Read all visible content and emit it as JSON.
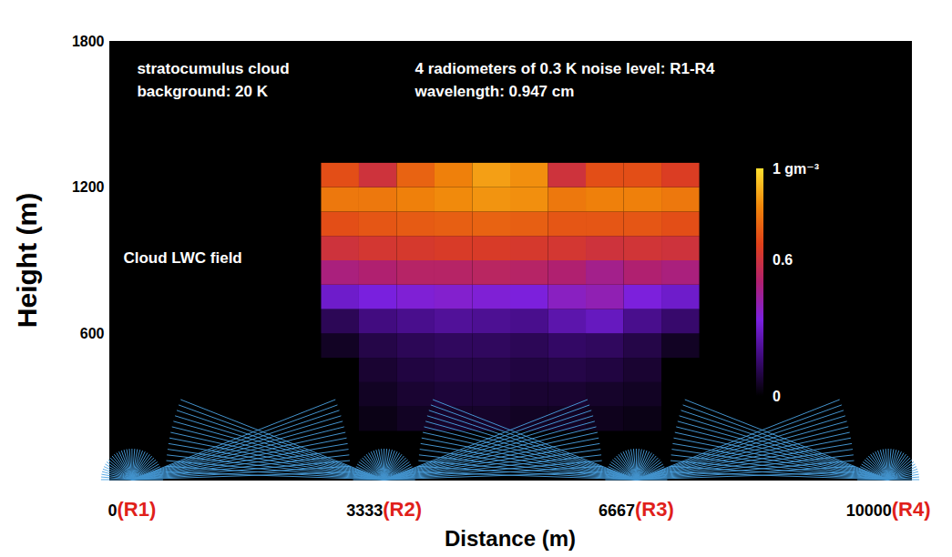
{
  "chart_data": {
    "type": "heatmap",
    "x_label": "Distance (m)",
    "y_label": "Height (m)",
    "xlim": [
      -300,
      10300
    ],
    "ylim": [
      0,
      1800
    ],
    "xticks": [
      0,
      3333,
      6667,
      10000
    ],
    "yticks": [
      600,
      1200,
      1800
    ],
    "grid": false,
    "cells": {
      "x_edges": [
        2500,
        3000,
        3500,
        4000,
        4500,
        5000,
        5500,
        6000,
        6500,
        7000,
        7500
      ],
      "y_edges": [
        200,
        300,
        400,
        500,
        600,
        700,
        800,
        900,
        1000,
        1100,
        1200,
        1300
      ],
      "values": [
        [
          0,
          0.03,
          0.05,
          0.06,
          0.06,
          0.05,
          0.05,
          0.04,
          0.03,
          0
        ],
        [
          0,
          0.05,
          0.07,
          0.08,
          0.08,
          0.07,
          0.07,
          0.06,
          0.05,
          0
        ],
        [
          0,
          0.07,
          0.09,
          0.1,
          0.1,
          0.09,
          0.1,
          0.09,
          0.07,
          0
        ],
        [
          0.05,
          0.1,
          0.12,
          0.13,
          0.13,
          0.12,
          0.14,
          0.13,
          0.1,
          0.05
        ],
        [
          0.12,
          0.18,
          0.2,
          0.22,
          0.21,
          0.2,
          0.25,
          0.28,
          0.2,
          0.15
        ],
        [
          0.3,
          0.33,
          0.35,
          0.36,
          0.35,
          0.34,
          0.38,
          0.4,
          0.34,
          0.3
        ],
        [
          0.48,
          0.5,
          0.52,
          0.52,
          0.53,
          0.52,
          0.5,
          0.46,
          0.5,
          0.48
        ],
        [
          0.6,
          0.62,
          0.63,
          0.64,
          0.64,
          0.63,
          0.62,
          0.6,
          0.61,
          0.6
        ],
        [
          0.7,
          0.72,
          0.73,
          0.74,
          0.75,
          0.74,
          0.72,
          0.72,
          0.72,
          0.7
        ],
        [
          0.8,
          0.8,
          0.82,
          0.84,
          0.86,
          0.85,
          0.8,
          0.82,
          0.82,
          0.8
        ],
        [
          0.7,
          0.6,
          0.75,
          0.82,
          0.88,
          0.85,
          0.6,
          0.7,
          0.7,
          0.65
        ]
      ]
    },
    "colorbar": {
      "range": [
        0,
        1
      ],
      "ticks": [
        0,
        0.6,
        {
          "value": 1,
          "label": "1 gm⁻³"
        }
      ],
      "colors": [
        "#000000",
        "#3d0a78",
        "#7a20e0",
        "#b02070",
        "#e0401a",
        "#f0860a",
        "#ffe030"
      ]
    },
    "annotations": [
      {
        "text": "stratocumulus cloud",
        "x": 60,
        "y": 1688
      },
      {
        "text": "background: 20 K",
        "x": 60,
        "y": 1595
      },
      {
        "text": "4 radiometers of 0.3 K noise level: R1-R4",
        "x": 3736,
        "y": 1688
      },
      {
        "text": "wavelength: 0.947 cm",
        "x": 3736,
        "y": 1595
      },
      {
        "text": "Cloud LWC field",
        "x": -120,
        "y": 912
      }
    ],
    "radiometers": [
      {
        "label": "(R1)",
        "x": 0
      },
      {
        "label": "(R2)",
        "x": 3333
      },
      {
        "label": "(R3)",
        "x": 6667
      },
      {
        "label": "(R4)",
        "x": 10000
      }
    ]
  }
}
